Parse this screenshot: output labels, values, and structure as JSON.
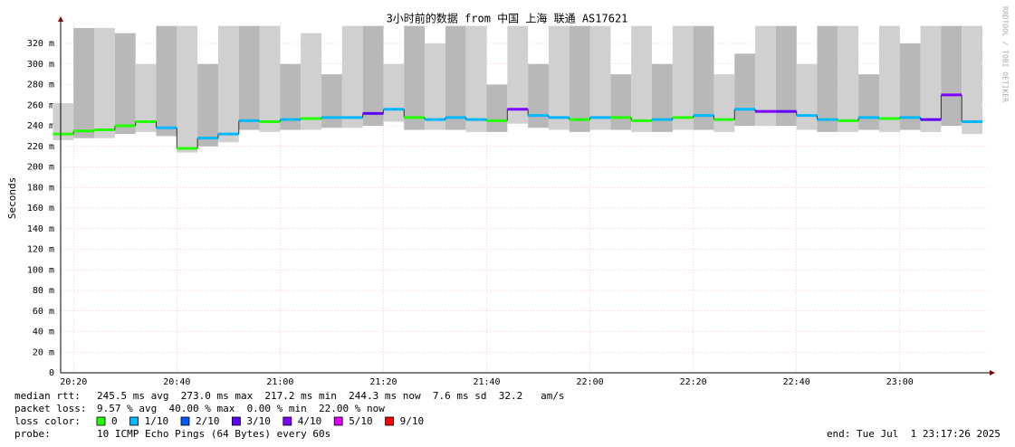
{
  "chart_data": {
    "type": "smokeping",
    "title": "3小时前的数据 from 中国 上海 联通 AS17621",
    "y_label": "Seconds",
    "credit": "RRDTOOL / TOBI OETIKER",
    "x": [
      1218,
      1222,
      1226,
      1230,
      1234,
      1238,
      1242,
      1246,
      1250,
      1254,
      1258,
      1262,
      1266,
      1270,
      1274,
      1278,
      1282,
      1286,
      1290,
      1294,
      1298,
      1302,
      1306,
      1310,
      1314,
      1318,
      1322,
      1326,
      1330,
      1334,
      1338,
      1342,
      1346,
      1350,
      1354,
      1358,
      1362,
      1366,
      1370,
      1374,
      1378,
      1382,
      1386,
      1390,
      1394
    ],
    "median": [
      232,
      235,
      236,
      240,
      244,
      238,
      218,
      228,
      232,
      245,
      244,
      246,
      247,
      248,
      248,
      252,
      256,
      248,
      246,
      248,
      246,
      245,
      256,
      250,
      248,
      246,
      248,
      248,
      245,
      246,
      248,
      250,
      246,
      256,
      254,
      254,
      250,
      246,
      245,
      248,
      247,
      248,
      246,
      270,
      244
    ],
    "loss": [
      0,
      0,
      0,
      0,
      0,
      1,
      0,
      1,
      1,
      1,
      0,
      1,
      0,
      1,
      1,
      3,
      1,
      0,
      1,
      1,
      1,
      0,
      4,
      1,
      1,
      0,
      1,
      0,
      0,
      1,
      0,
      1,
      0,
      1,
      4,
      3,
      1,
      1,
      0,
      1,
      0,
      1,
      3,
      4,
      1
    ],
    "smoke_min": [
      226,
      228,
      228,
      232,
      234,
      230,
      214,
      220,
      224,
      236,
      234,
      236,
      236,
      238,
      238,
      240,
      244,
      236,
      236,
      236,
      234,
      234,
      242,
      238,
      236,
      234,
      236,
      236,
      234,
      234,
      236,
      236,
      234,
      240,
      240,
      240,
      236,
      234,
      234,
      236,
      234,
      236,
      234,
      240,
      232
    ],
    "smoke_max": [
      262,
      335,
      335,
      330,
      300,
      337,
      337,
      300,
      337,
      337,
      337,
      300,
      330,
      290,
      337,
      337,
      300,
      337,
      320,
      337,
      337,
      280,
      337,
      300,
      337,
      337,
      337,
      290,
      337,
      300,
      337,
      337,
      290,
      310,
      337,
      337,
      300,
      337,
      337,
      290,
      337,
      320,
      337,
      337,
      337
    ],
    "xlim": [
      1217.5,
      1397.4
    ],
    "xticks": [
      {
        "value": 1220,
        "label": "20:20"
      },
      {
        "value": 1240,
        "label": "20:40"
      },
      {
        "value": 1260,
        "label": "21:00"
      },
      {
        "value": 1280,
        "label": "21:20"
      },
      {
        "value": 1300,
        "label": "21:40"
      },
      {
        "value": 1320,
        "label": "22:00"
      },
      {
        "value": 1340,
        "label": "22:20"
      },
      {
        "value": 1360,
        "label": "22:40"
      },
      {
        "value": 1380,
        "label": "23:00"
      }
    ],
    "ylim": [
      0,
      340
    ],
    "yticks": [
      0,
      {
        "value": 20,
        "label": "20 m"
      },
      {
        "value": 40,
        "label": "40 m"
      },
      {
        "value": 60,
        "label": "60 m"
      },
      {
        "value": 80,
        "label": "80 m"
      },
      {
        "value": 100,
        "label": "100 m"
      },
      {
        "value": 120,
        "label": "120 m"
      },
      {
        "value": 140,
        "label": "140 m"
      },
      {
        "value": 160,
        "label": "160 m"
      },
      {
        "value": 180,
        "label": "180 m"
      },
      {
        "value": 200,
        "label": "200 m"
      },
      {
        "value": 220,
        "label": "220 m"
      },
      {
        "value": 240,
        "label": "240 m"
      },
      {
        "value": 260,
        "label": "260 m"
      },
      {
        "value": 280,
        "label": "280 m"
      },
      {
        "value": 300,
        "label": "300 m"
      },
      {
        "value": 320,
        "label": "320 m"
      }
    ],
    "grid": true,
    "median_rtt": {
      "label": "median rtt:",
      "text": "245.5 ms avg  273.0 ms max  217.2 ms min  244.3 ms now  7.6 ms sd  32.2   am/s"
    },
    "packet_loss": {
      "label": "packet loss:",
      "text": "9.57 % avg  40.00 % max  0.00 % min  22.00 % now"
    },
    "loss_legend": {
      "label": "loss color:",
      "items": [
        {
          "value": 0,
          "label": "0",
          "color": "#26ff00"
        },
        {
          "value": 1,
          "label": "1/10",
          "color": "#00b8ff"
        },
        {
          "value": 2,
          "label": "2/10",
          "color": "#0059ff"
        },
        {
          "value": 3,
          "label": "3/10",
          "color": "#5e00ff"
        },
        {
          "value": 4,
          "label": "4/10",
          "color": "#7e00ff"
        },
        {
          "value": 5,
          "label": "5/10",
          "color": "#dd00ff"
        },
        {
          "value": 9,
          "label": "9/10",
          "color": "#ff0000"
        }
      ]
    },
    "probe": {
      "label": "probe:",
      "text": "10 ICMP Echo Pings (64 Bytes) every 60s"
    },
    "end": "end: Tue Jul  1 23:17:26 2025"
  }
}
